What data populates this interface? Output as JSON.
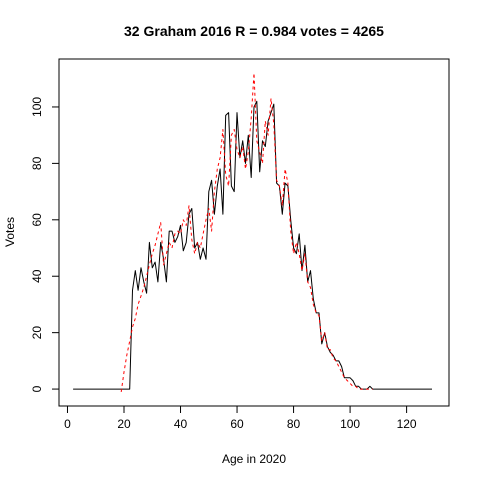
{
  "chart_data": {
    "type": "line",
    "title": "32 Graham 2016 R = 0.984 votes = 4265",
    "xlabel": "Age in 2020",
    "ylabel": "Votes",
    "xlim": [
      -3,
      135
    ],
    "ylim": [
      -6,
      117
    ],
    "xticks": [
      0,
      20,
      40,
      60,
      80,
      100,
      120
    ],
    "yticks": [
      0,
      20,
      40,
      60,
      80,
      100
    ],
    "grid": false,
    "series": [
      {
        "style": "solid",
        "color": "#000000",
        "x": [
          2,
          21,
          22,
          23,
          24,
          25,
          26,
          27,
          28,
          29,
          30,
          31,
          32,
          33,
          34,
          35,
          36,
          37,
          38,
          39,
          40,
          41,
          42,
          43,
          44,
          45,
          46,
          47,
          48,
          49,
          50,
          51,
          52,
          53,
          54,
          55,
          56,
          57,
          58,
          59,
          60,
          61,
          62,
          63,
          64,
          65,
          66,
          67,
          68,
          69,
          70,
          71,
          72,
          73,
          74,
          75,
          76,
          77,
          78,
          79,
          80,
          81,
          82,
          83,
          84,
          85,
          86,
          87,
          88,
          89,
          90,
          91,
          92,
          93,
          94,
          95,
          96,
          97,
          98,
          99,
          100,
          101,
          102,
          103,
          104,
          105,
          106,
          107,
          108,
          109,
          110,
          129
        ],
        "values": [
          0,
          0,
          0,
          35,
          42,
          35,
          43,
          38,
          34,
          52,
          43,
          45,
          38,
          52,
          46,
          38,
          56,
          56,
          52,
          54,
          58,
          49,
          52,
          62,
          64,
          50,
          52,
          46,
          50,
          46,
          70,
          74,
          62,
          72,
          78,
          62,
          97,
          98,
          72,
          70,
          98,
          82,
          88,
          80,
          90,
          75,
          100,
          102,
          77,
          88,
          86,
          95,
          98,
          101,
          73,
          72,
          62,
          73,
          72,
          60,
          50,
          48,
          55,
          42,
          51,
          38,
          42,
          32,
          27,
          27,
          16,
          20,
          15,
          13,
          12,
          10,
          10,
          8,
          4,
          4,
          4,
          3,
          1,
          1,
          0,
          0,
          0,
          1,
          0,
          0,
          0,
          0
        ]
      },
      {
        "style": "dashed",
        "color": "#ff0000",
        "x": [
          19,
          20,
          21,
          22,
          23,
          24,
          25,
          26,
          27,
          28,
          29,
          30,
          31,
          32,
          33,
          34,
          35,
          36,
          37,
          38,
          39,
          40,
          41,
          42,
          43,
          44,
          45,
          46,
          47,
          48,
          49,
          50,
          51,
          52,
          53,
          54,
          55,
          56,
          57,
          58,
          59,
          60,
          61,
          62,
          63,
          64,
          65,
          66,
          67,
          68,
          69,
          70,
          71,
          72,
          73,
          74,
          75,
          76,
          77,
          78,
          79,
          80,
          81,
          82,
          83,
          84,
          85,
          86,
          87,
          88,
          89,
          90,
          91,
          92,
          93,
          94,
          95,
          96,
          97,
          98,
          99,
          100,
          101,
          102,
          103,
          104,
          105,
          106,
          107,
          108
        ],
        "values": [
          -1,
          6,
          12,
          17,
          22,
          25,
          30,
          33,
          36,
          40,
          44,
          48,
          51,
          55,
          59,
          44,
          48,
          52,
          50,
          55,
          56,
          55,
          60,
          58,
          65,
          53,
          48,
          52,
          50,
          55,
          60,
          64,
          56,
          70,
          78,
          82,
          92,
          76,
          72,
          90,
          92,
          85,
          82,
          86,
          78,
          84,
          96,
          112,
          88,
          84,
          80,
          95,
          90,
          103,
          94,
          74,
          72,
          65,
          78,
          73,
          56,
          48,
          52,
          48,
          42,
          48,
          38,
          36,
          30,
          27,
          26,
          17,
          20,
          14,
          14,
          11,
          10,
          8,
          6,
          4,
          3,
          2,
          1,
          1,
          0,
          0,
          0,
          0,
          0,
          0
        ]
      }
    ]
  }
}
